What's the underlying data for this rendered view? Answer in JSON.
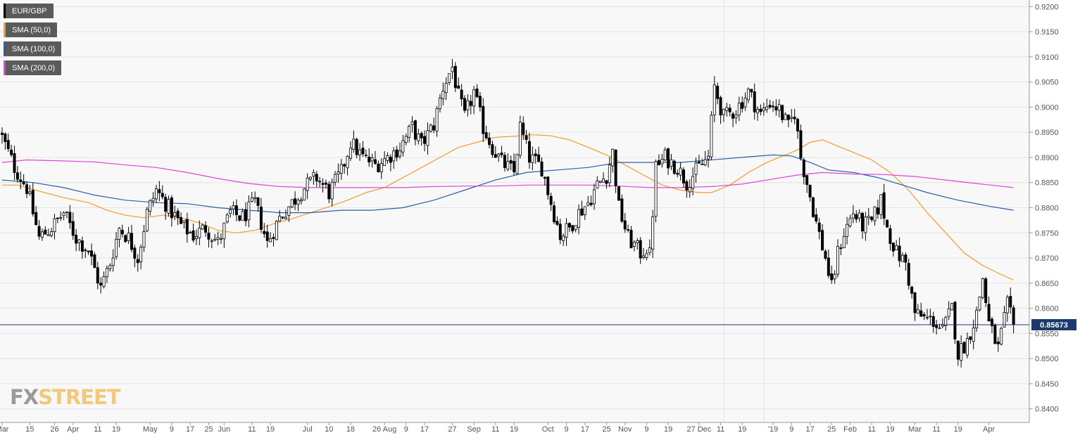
{
  "legend": [
    {
      "label": "EUR/GBP",
      "color": "#000000"
    },
    {
      "label": "SMA (50,0)",
      "color": "#f39c2b"
    },
    {
      "label": "SMA (100,0)",
      "color": "#2a5fa8"
    },
    {
      "label": "SMA (200,0)",
      "color": "#e043d8"
    }
  ],
  "watermark": {
    "part1": "FX",
    "part2": "STREET"
  },
  "price_tag": "0.85673",
  "chart_data": {
    "type": "candlestick",
    "title": "",
    "symbol": "EUR/GBP",
    "y_axis": {
      "ylim": [
        0.8373,
        0.9213
      ],
      "ticks": [
        "0.9200",
        "0.9150",
        "0.9100",
        "0.9050",
        "0.9000",
        "0.8950",
        "0.8900",
        "0.8850",
        "0.8800",
        "0.8750",
        "0.8700",
        "0.8650",
        "0.8600",
        "0.8550",
        "0.8500",
        "0.8450",
        "0.8400"
      ]
    },
    "x_axis": {
      "ticks": [
        {
          "label": "Mar",
          "i": 0
        },
        {
          "label": "15",
          "i": 9
        },
        {
          "label": "26",
          "i": 17
        },
        {
          "label": "Apr",
          "i": 23
        },
        {
          "label": "11",
          "i": 31
        },
        {
          "label": "19",
          "i": 37
        },
        {
          "label": "May",
          "i": 48
        },
        {
          "label": "9",
          "i": 55
        },
        {
          "label": "17",
          "i": 61
        },
        {
          "label": "25",
          "i": 67
        },
        {
          "label": "Jun",
          "i": 72
        },
        {
          "label": "11",
          "i": 81
        },
        {
          "label": "19",
          "i": 87
        },
        {
          "label": "Jul",
          "i": 99
        },
        {
          "label": "10",
          "i": 106
        },
        {
          "label": "18",
          "i": 113
        },
        {
          "label": "26 Aug",
          "i": 124
        },
        {
          "label": "9",
          "i": 131
        },
        {
          "label": "17",
          "i": 137
        },
        {
          "label": "27",
          "i": 146
        },
        {
          "label": "Sep",
          "i": 153
        },
        {
          "label": "11",
          "i": 160
        },
        {
          "label": "19",
          "i": 166
        },
        {
          "label": "Oct",
          "i": 177
        },
        {
          "label": "9",
          "i": 183
        },
        {
          "label": "17",
          "i": 189
        },
        {
          "label": "25",
          "i": 196
        },
        {
          "label": "Nov",
          "i": 202
        },
        {
          "label": "9",
          "i": 209
        },
        {
          "label": "19",
          "i": 216
        },
        {
          "label": "27 Dec",
          "i": 226
        },
        {
          "label": "11",
          "i": 233
        },
        {
          "label": "19",
          "i": 240
        },
        {
          "label": "'19",
          "i": 250
        },
        {
          "label": "9",
          "i": 256
        },
        {
          "label": "17",
          "i": 262
        },
        {
          "label": "25",
          "i": 269
        },
        {
          "label": "Feb",
          "i": 275
        },
        {
          "label": "11",
          "i": 282
        },
        {
          "label": "19",
          "i": 288
        },
        {
          "label": "Mar",
          "i": 296
        },
        {
          "label": "11",
          "i": 303
        },
        {
          "label": "19",
          "i": 310
        },
        {
          "label": "Apr",
          "i": 320
        }
      ],
      "vertical_grid_at_i": [
        234,
        247
      ]
    },
    "current_price": 0.85673,
    "grid": true,
    "legend_position": "top-left",
    "series": [
      {
        "name": "EUR/GBP",
        "type": "candlestick",
        "color": "#000000",
        "anchors": [
          [
            0,
            0.894
          ],
          [
            4,
            0.888
          ],
          [
            8,
            0.884
          ],
          [
            12,
            0.874
          ],
          [
            16,
            0.876
          ],
          [
            20,
            0.879
          ],
          [
            24,
            0.874
          ],
          [
            28,
            0.8715
          ],
          [
            32,
            0.864
          ],
          [
            35,
            0.869
          ],
          [
            38,
            0.876
          ],
          [
            41,
            0.874
          ],
          [
            44,
            0.87
          ],
          [
            47,
            0.879
          ],
          [
            50,
            0.8835
          ],
          [
            54,
            0.88
          ],
          [
            58,
            0.8765
          ],
          [
            62,
            0.8745
          ],
          [
            66,
            0.876
          ],
          [
            70,
            0.873
          ],
          [
            74,
            0.879
          ],
          [
            78,
            0.878
          ],
          [
            82,
            0.881
          ],
          [
            86,
            0.873
          ],
          [
            90,
            0.878
          ],
          [
            94,
            0.881
          ],
          [
            98,
            0.884
          ],
          [
            102,
            0.886
          ],
          [
            106,
            0.883
          ],
          [
            110,
            0.887
          ],
          [
            113,
            0.893
          ],
          [
            117,
            0.89
          ],
          [
            121,
            0.8885
          ],
          [
            125,
            0.89
          ],
          [
            129,
            0.892
          ],
          [
            133,
            0.896
          ],
          [
            136,
            0.8925
          ],
          [
            140,
            0.8965
          ],
          [
            143,
            0.904
          ],
          [
            146,
            0.908
          ],
          [
            148,
            0.902
          ],
          [
            150,
            0.898
          ],
          [
            153,
            0.903
          ],
          [
            156,
            0.896
          ],
          [
            159,
            0.892
          ],
          [
            162,
            0.889
          ],
          [
            166,
            0.887
          ],
          [
            168,
            0.896
          ],
          [
            171,
            0.89
          ],
          [
            175,
            0.888
          ],
          [
            178,
            0.881
          ],
          [
            181,
            0.8745
          ],
          [
            184,
            0.876
          ],
          [
            187,
            0.879
          ],
          [
            190,
            0.881
          ],
          [
            193,
            0.8845
          ],
          [
            196,
            0.8865
          ],
          [
            198,
            0.891
          ],
          [
            200,
            0.88
          ],
          [
            203,
            0.874
          ],
          [
            207,
            0.871
          ],
          [
            209,
            0.872
          ],
          [
            210,
            0.8705
          ],
          [
            212,
            0.888
          ],
          [
            215,
            0.89
          ],
          [
            219,
            0.888
          ],
          [
            222,
            0.885
          ],
          [
            226,
            0.888
          ],
          [
            229,
            0.89
          ],
          [
            231,
            0.904
          ],
          [
            234,
            0.898
          ],
          [
            238,
            0.8995
          ],
          [
            242,
            0.903
          ],
          [
            246,
            0.8985
          ],
          [
            249,
            0.901
          ],
          [
            252,
            0.8995
          ],
          [
            255,
            0.896
          ],
          [
            257,
            0.899
          ],
          [
            259,
            0.89
          ],
          [
            261,
            0.885
          ],
          [
            264,
            0.877
          ],
          [
            267,
            0.87
          ],
          [
            269,
            0.864
          ],
          [
            271,
            0.871
          ],
          [
            273,
            0.875
          ],
          [
            276,
            0.879
          ],
          [
            279,
            0.8765
          ],
          [
            282,
            0.877
          ],
          [
            285,
            0.8815
          ],
          [
            287,
            0.876
          ],
          [
            290,
            0.871
          ],
          [
            293,
            0.869
          ],
          [
            296,
            0.859
          ],
          [
            299,
            0.858
          ],
          [
            302,
            0.8575
          ],
          [
            305,
            0.8555
          ],
          [
            308,
            0.86
          ],
          [
            310,
            0.851
          ],
          [
            313,
            0.8535
          ],
          [
            316,
            0.859
          ],
          [
            318,
            0.866
          ],
          [
            320,
            0.857
          ],
          [
            323,
            0.852
          ],
          [
            326,
            0.8605
          ],
          [
            328,
            0.8567
          ]
        ]
      },
      {
        "name": "SMA (50,0)",
        "type": "line",
        "color": "#f39c2b",
        "points": [
          [
            0,
            0.8845
          ],
          [
            5,
            0.8845
          ],
          [
            12,
            0.8833
          ],
          [
            20,
            0.882
          ],
          [
            28,
            0.881
          ],
          [
            34,
            0.8795
          ],
          [
            40,
            0.8785
          ],
          [
            46,
            0.878
          ],
          [
            52,
            0.8785
          ],
          [
            58,
            0.878
          ],
          [
            64,
            0.877
          ],
          [
            70,
            0.8755
          ],
          [
            76,
            0.875
          ],
          [
            82,
            0.8755
          ],
          [
            88,
            0.8768
          ],
          [
            94,
            0.8778
          ],
          [
            100,
            0.879
          ],
          [
            106,
            0.8802
          ],
          [
            112,
            0.8815
          ],
          [
            118,
            0.883
          ],
          [
            124,
            0.884
          ],
          [
            130,
            0.886
          ],
          [
            136,
            0.888
          ],
          [
            142,
            0.89
          ],
          [
            148,
            0.892
          ],
          [
            154,
            0.893
          ],
          [
            160,
            0.894
          ],
          [
            166,
            0.8942
          ],
          [
            172,
            0.8945
          ],
          [
            178,
            0.8943
          ],
          [
            184,
            0.8935
          ],
          [
            190,
            0.892
          ],
          [
            196,
            0.8905
          ],
          [
            202,
            0.8885
          ],
          [
            208,
            0.8865
          ],
          [
            214,
            0.8845
          ],
          [
            220,
            0.8835
          ],
          [
            226,
            0.883
          ],
          [
            230,
            0.883
          ],
          [
            236,
            0.8845
          ],
          [
            242,
            0.887
          ],
          [
            248,
            0.889
          ],
          [
            254,
            0.8905
          ],
          [
            258,
            0.8915
          ],
          [
            262,
            0.893
          ],
          [
            266,
            0.8935
          ],
          [
            270,
            0.8925
          ],
          [
            276,
            0.891
          ],
          [
            282,
            0.8895
          ],
          [
            288,
            0.887
          ],
          [
            294,
            0.8835
          ],
          [
            300,
            0.879
          ],
          [
            306,
            0.875
          ],
          [
            312,
            0.871
          ],
          [
            318,
            0.8685
          ],
          [
            323,
            0.867
          ],
          [
            328,
            0.8656
          ]
        ]
      },
      {
        "name": "SMA (100,0)",
        "type": "line",
        "color": "#2a5fa8",
        "points": [
          [
            0,
            0.8855
          ],
          [
            10,
            0.885
          ],
          [
            20,
            0.884
          ],
          [
            30,
            0.8825
          ],
          [
            40,
            0.8815
          ],
          [
            50,
            0.881
          ],
          [
            60,
            0.8808
          ],
          [
            70,
            0.88
          ],
          [
            80,
            0.8795
          ],
          [
            90,
            0.879
          ],
          [
            100,
            0.879
          ],
          [
            110,
            0.8795
          ],
          [
            120,
            0.8795
          ],
          [
            130,
            0.88
          ],
          [
            140,
            0.8815
          ],
          [
            150,
            0.8835
          ],
          [
            160,
            0.8855
          ],
          [
            170,
            0.887
          ],
          [
            180,
            0.8875
          ],
          [
            190,
            0.888
          ],
          [
            200,
            0.889
          ],
          [
            210,
            0.889
          ],
          [
            220,
            0.889
          ],
          [
            230,
            0.8895
          ],
          [
            240,
            0.89
          ],
          [
            250,
            0.8905
          ],
          [
            256,
            0.8903
          ],
          [
            262,
            0.889
          ],
          [
            268,
            0.8875
          ],
          [
            276,
            0.887
          ],
          [
            284,
            0.886
          ],
          [
            292,
            0.8845
          ],
          [
            300,
            0.883
          ],
          [
            310,
            0.8815
          ],
          [
            320,
            0.8803
          ],
          [
            328,
            0.8795
          ]
        ]
      },
      {
        "name": "SMA (200,0)",
        "type": "line",
        "color": "#e043d8",
        "points": [
          [
            0,
            0.889
          ],
          [
            8,
            0.8895
          ],
          [
            20,
            0.8893
          ],
          [
            30,
            0.8891
          ],
          [
            40,
            0.8885
          ],
          [
            50,
            0.888
          ],
          [
            60,
            0.887
          ],
          [
            70,
            0.8858
          ],
          [
            80,
            0.8848
          ],
          [
            90,
            0.8842
          ],
          [
            100,
            0.884
          ],
          [
            110,
            0.884
          ],
          [
            120,
            0.884
          ],
          [
            130,
            0.884
          ],
          [
            140,
            0.8842
          ],
          [
            150,
            0.8843
          ],
          [
            160,
            0.8843
          ],
          [
            170,
            0.8845
          ],
          [
            180,
            0.8845
          ],
          [
            190,
            0.8845
          ],
          [
            200,
            0.8843
          ],
          [
            210,
            0.884
          ],
          [
            220,
            0.884
          ],
          [
            230,
            0.8842
          ],
          [
            240,
            0.8847
          ],
          [
            250,
            0.8857
          ],
          [
            258,
            0.8865
          ],
          [
            266,
            0.887
          ],
          [
            276,
            0.8867
          ],
          [
            286,
            0.8866
          ],
          [
            296,
            0.8862
          ],
          [
            306,
            0.8855
          ],
          [
            316,
            0.8848
          ],
          [
            328,
            0.884
          ]
        ]
      }
    ]
  }
}
